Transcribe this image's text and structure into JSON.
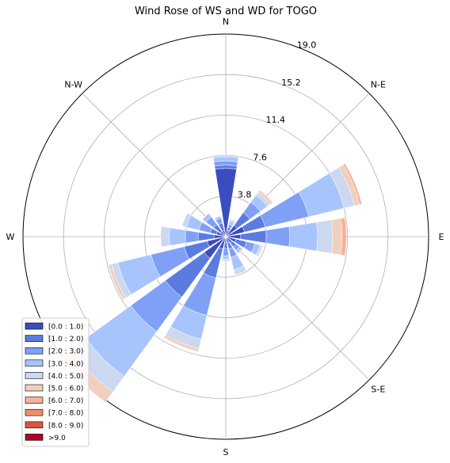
{
  "chart_data": {
    "type": "windrose",
    "title": "Wind Rose of WS and WD for TOGO",
    "direction_labels": [
      {
        "angle": 0,
        "label": "N"
      },
      {
        "angle": 45,
        "label": "N-E"
      },
      {
        "angle": 90,
        "label": "E"
      },
      {
        "angle": 135,
        "label": "S-E"
      },
      {
        "angle": 180,
        "label": "S"
      },
      {
        "angle": 225,
        "label": ""
      },
      {
        "angle": 270,
        "label": "W"
      },
      {
        "angle": 315,
        "label": "N-W"
      }
    ],
    "radial_ticks": [
      3.8,
      7.6,
      11.4,
      15.2,
      19.0
    ],
    "radial_tick_labels": [
      "3.8",
      "7.6",
      "11.4",
      "15.2",
      "19.0"
    ],
    "rmax": 19.0,
    "legend": {
      "placement": "lower-left",
      "bins": [
        "[0.0 : 1.0)",
        "[1.0 : 2.0)",
        "[2.0 : 3.0)",
        "[3.0 : 4.0)",
        "[4.0 : 5.0)",
        "[5.0 : 6.0)",
        "[6.0 : 7.0)",
        "[7.0 : 8.0)",
        "[8.0 : 9.0)",
        ">9.0"
      ],
      "colors": [
        "#3b4cc0",
        "#5b7be0",
        "#7fa0f5",
        "#a8c4fc",
        "#cbd8ef",
        "#efd0c0",
        "#f7b09a",
        "#ee8b6d",
        "#d9573f",
        "#b40426"
      ]
    },
    "sector_width_deg": 18,
    "directions": [
      {
        "angle": 0,
        "cumulative": [
          6.4,
          6.7,
          7.1,
          7.5,
          7.7
        ]
      },
      {
        "angle": 22.5,
        "cumulative": [
          0.6,
          0.9,
          1.2,
          1.5,
          1.7
        ]
      },
      {
        "angle": 45,
        "cumulative": [
          1.3,
          2.8,
          4.0,
          4.8,
          5.1,
          5.3,
          5.4
        ]
      },
      {
        "angle": 67.5,
        "cumulative": [
          1.8,
          3.8,
          8.0,
          11.4,
          12.4,
          12.9,
          13.1
        ]
      },
      {
        "angle": 90,
        "cumulative": [
          1.4,
          3.8,
          6.0,
          8.6,
          10.0,
          10.9,
          11.3
        ]
      },
      {
        "angle": 112.5,
        "cumulative": [
          1.0,
          2.0,
          2.8,
          3.3,
          3.5,
          3.6
        ]
      },
      {
        "angle": 135,
        "cumulative": [
          0.7,
          1.2,
          1.6,
          1.9,
          2.0
        ]
      },
      {
        "angle": 157.5,
        "cumulative": [
          0.6,
          1.2,
          2.0,
          3.2,
          3.7
        ]
      },
      {
        "angle": 180,
        "cumulative": [
          0.5,
          1.1,
          1.8,
          2.1,
          2.3
        ]
      },
      {
        "angle": 202.5,
        "cumulative": [
          1.2,
          4.0,
          7.6,
          9.9,
          10.8,
          11.1
        ]
      },
      {
        "angle": 225,
        "cumulative": [
          2.5,
          7.0,
          11.0,
          16.2,
          18.0,
          19.2
        ]
      },
      {
        "angle": 247.5,
        "cumulative": [
          1.8,
          4.0,
          7.2,
          10.4,
          11.0,
          11.3
        ]
      },
      {
        "angle": 270,
        "cumulative": [
          1.1,
          2.6,
          3.8,
          5.3,
          6.1
        ]
      },
      {
        "angle": 292.5,
        "cumulative": [
          0.9,
          1.5,
          2.6,
          3.8,
          4.2
        ]
      },
      {
        "angle": 315,
        "cumulative": [
          0.6,
          1.4,
          2.3,
          2.7
        ]
      },
      {
        "angle": 337.5,
        "cumulative": [
          0.6,
          1.3,
          1.8,
          2.0
        ]
      }
    ]
  }
}
